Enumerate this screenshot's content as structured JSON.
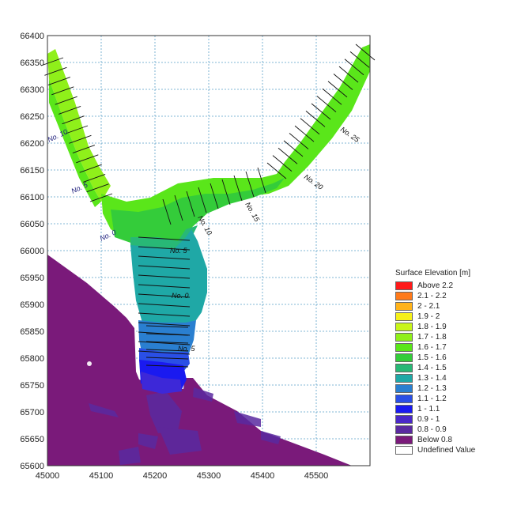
{
  "map": {
    "x_ticks": [
      "45000",
      "45100",
      "45200",
      "45300",
      "45400",
      "45500"
    ],
    "y_ticks": [
      "66400",
      "66350",
      "66300",
      "66250",
      "66200",
      "66150",
      "66100",
      "66050",
      "66000",
      "65950",
      "65900",
      "65850",
      "65800",
      "65750",
      "65700",
      "65650",
      "65600"
    ],
    "section_labels": [
      {
        "text": "No. 10",
        "colour": "#1a1a7a"
      },
      {
        "text": "No. 5",
        "colour": "#1a1a7a"
      },
      {
        "text": "No. 0",
        "colour": "#1a1a7a"
      },
      {
        "text": "No. 5",
        "colour": "#111111"
      },
      {
        "text": "No. 0",
        "colour": "#111111"
      },
      {
        "text": "No. 5",
        "colour": "#111111"
      },
      {
        "text": "No. 10",
        "colour": "#111111"
      },
      {
        "text": "No. 15",
        "colour": "#111111"
      },
      {
        "text": "No. 20",
        "colour": "#111111"
      },
      {
        "text": "No. 25",
        "colour": "#111111"
      }
    ]
  },
  "legend": {
    "title": "Surface Elevation [m]",
    "items": [
      {
        "label": "Above 2.2",
        "color": "#ff1a1a"
      },
      {
        "label": "2.1 - 2.2",
        "color": "#ff7a1a"
      },
      {
        "label": "2 - 2.1",
        "color": "#ffb31a"
      },
      {
        "label": "1.9 -   2",
        "color": "#f5f01a"
      },
      {
        "label": "1.8 - 1.9",
        "color": "#c8f51a"
      },
      {
        "label": "1.7 - 1.8",
        "color": "#8ff01a"
      },
      {
        "label": "1.6 - 1.7",
        "color": "#5ae61a"
      },
      {
        "label": "1.5 - 1.6",
        "color": "#34cc3a"
      },
      {
        "label": "1.4 - 1.5",
        "color": "#28b876"
      },
      {
        "label": "1.3 - 1.4",
        "color": "#1fa8a6"
      },
      {
        "label": "1.2 - 1.3",
        "color": "#2a7fd0"
      },
      {
        "label": "1.1 - 1.2",
        "color": "#2a4fe6"
      },
      {
        "label": "1 - 1.1",
        "color": "#1a1af0"
      },
      {
        "label": "0.9 -   1",
        "color": "#4a28c8"
      },
      {
        "label": "0.8 - 0.9",
        "color": "#5a2aa0"
      },
      {
        "label": "Below 0.8",
        "color": "#7a1a7a"
      },
      {
        "label": "Undefined Value",
        "color": "#ffffff"
      }
    ]
  }
}
